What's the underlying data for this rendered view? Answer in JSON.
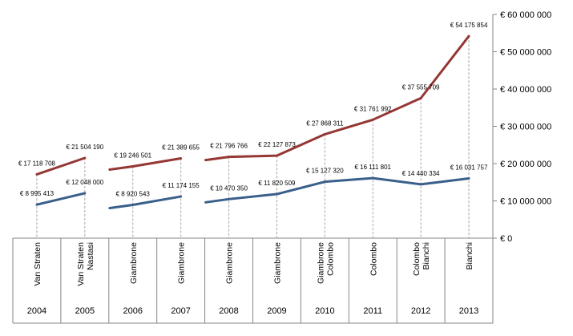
{
  "chart_data": {
    "type": "line",
    "title": "",
    "xlabel": "",
    "ylabel": "",
    "ylim": [
      0,
      60000000
    ],
    "y_ticks": [
      0,
      10000000,
      20000000,
      30000000,
      40000000,
      50000000,
      60000000
    ],
    "y_tick_labels": [
      "€ 0",
      "€ 10 000 000",
      "€ 20 000 000",
      "€ 30 000 000",
      "€ 40 000 000",
      "€ 50 000 000",
      "€ 60 000 000"
    ],
    "y_axis_side": "right",
    "grid": false,
    "legend": "none",
    "categories": [
      {
        "year": "2004",
        "names": [
          "Van Straten"
        ]
      },
      {
        "year": "2005",
        "names": [
          "Van Straten",
          "Nastasi"
        ]
      },
      {
        "year": "2006",
        "names": [
          "Giambrone"
        ]
      },
      {
        "year": "2007",
        "names": [
          "Giambrone"
        ]
      },
      {
        "year": "2008",
        "names": [
          "Giambrone"
        ]
      },
      {
        "year": "2009",
        "names": [
          "Giambrone"
        ]
      },
      {
        "year": "2010",
        "names": [
          "Giambrone",
          "Colombo"
        ]
      },
      {
        "year": "2011",
        "names": [
          "Colombo"
        ]
      },
      {
        "year": "2012",
        "names": [
          "Colombo",
          "Bianchi"
        ]
      },
      {
        "year": "2013",
        "names": [
          "Bianchi"
        ]
      }
    ],
    "series": [
      {
        "color": "#953735",
        "values": [
          17118708,
          21504190,
          19246501,
          21389655,
          21796766,
          22127873,
          27868311,
          31761992,
          37555709,
          54175854
        ],
        "labels": [
          "€ 17 118 708",
          "€ 21 504 190",
          "€ 19 246 501",
          "€ 21 389 655",
          "€ 21 796 766",
          "€ 22 127 873",
          "€ 27 868 311",
          "€ 31 761 992",
          "€ 37 555 709",
          "€ 54 175 854"
        ]
      },
      {
        "color": "#3A5F8B",
        "values": [
          8995413,
          12048000,
          8920543,
          11174155,
          10470350,
          11820509,
          15127320,
          16111801,
          14440334,
          16031757
        ],
        "labels": [
          "€ 8 995 413",
          "€ 12 048 000",
          "€ 8 920 543",
          "€ 11 174 155",
          "€ 10 470 350",
          "€ 11 820 509",
          "€ 15 127 320",
          "€ 16 111 801",
          "€ 14 440 334",
          "€ 16 031 757"
        ]
      }
    ]
  }
}
